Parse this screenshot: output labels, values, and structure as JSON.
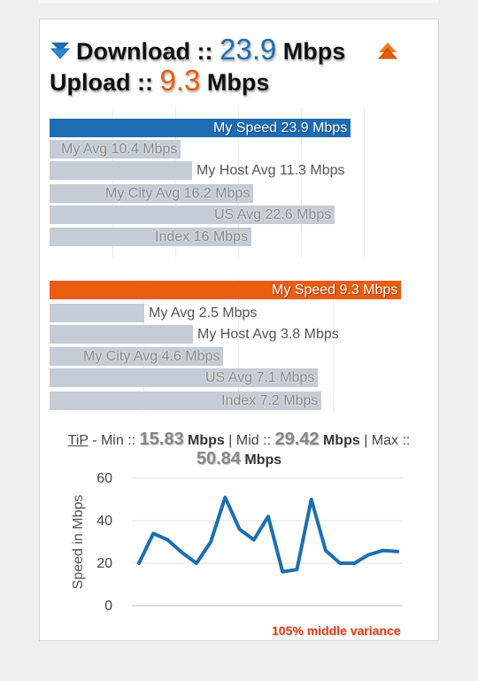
{
  "header": {
    "download_label": "Download ::",
    "download_value": "23.9",
    "download_unit": "Mbps",
    "upload_label": "Upload ::",
    "upload_value": "9.3",
    "upload_unit": "Mbps",
    "icons": {
      "download": "down-arrow-icon",
      "upload": "up-arrow-icon"
    }
  },
  "colors": {
    "download": "#1e6db3",
    "upload": "#e95d0f",
    "bar_gray": "#c4ccd5",
    "line": "#1b6fb3",
    "variance_text": "#e0421a"
  },
  "download_bars": [
    {
      "label": "My Speed 23.9 Mbps",
      "value": 23.9,
      "highlight": true
    },
    {
      "label": "My Avg 10.4 Mbps",
      "value": 10.4
    },
    {
      "label": "My Host Avg 11.3 Mbps",
      "value": 11.3
    },
    {
      "label": "My City Avg 16.2 Mbps",
      "value": 16.2
    },
    {
      "label": "US Avg 22.6 Mbps",
      "value": 22.6
    },
    {
      "label": "Index 16 Mbps",
      "value": 16
    }
  ],
  "upload_bars": [
    {
      "label": "My Speed 9.3 Mbps",
      "value": 9.3,
      "highlight": true
    },
    {
      "label": "My Avg 2.5 Mbps",
      "value": 2.5
    },
    {
      "label": "My Host Avg 3.8 Mbps",
      "value": 3.8
    },
    {
      "label": "My City Avg 4.6 Mbps",
      "value": 4.6
    },
    {
      "label": "US Avg 7.1 Mbps",
      "value": 7.1
    },
    {
      "label": "Index 7.2 Mbps",
      "value": 7.2
    }
  ],
  "tip": {
    "word": "TiP",
    "min_label": "- Min ::",
    "min_value": "15.83",
    "mid_label": "| Mid ::",
    "mid_value": "29.42",
    "max_label": "| Max ::",
    "max_value": "50.84",
    "unit": "Mbps"
  },
  "chart_data": {
    "type": "line",
    "title": "",
    "xlabel": "",
    "ylabel": "Speed in Mbps",
    "ylim": [
      0,
      60
    ],
    "yticks": [
      "0",
      "20",
      "40",
      "60"
    ],
    "grid": true,
    "series": [
      {
        "values": [
          20,
          34,
          31,
          25,
          20,
          30,
          51,
          36,
          31,
          42,
          16,
          17,
          50,
          26,
          20,
          20,
          24,
          26,
          25.5
        ]
      }
    ]
  },
  "variance_note": "105% middle variance"
}
